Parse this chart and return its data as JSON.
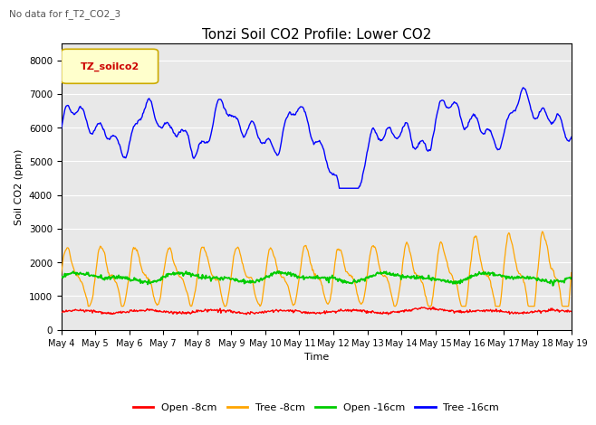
{
  "title": "Tonzi Soil CO2 Profile: Lower CO2",
  "subtitle": "No data for f_T2_CO2_3",
  "ylabel": "Soil CO2 (ppm)",
  "xlabel": "Time",
  "legend_label": "TZ_soilco2",
  "legend_entries": [
    "Open -8cm",
    "Tree -8cm",
    "Open -16cm",
    "Tree -16cm"
  ],
  "legend_colors": [
    "#ff0000",
    "#ffa500",
    "#00cc00",
    "#0000ff"
  ],
  "ylim": [
    0,
    8500
  ],
  "yticks": [
    0,
    1000,
    2000,
    3000,
    4000,
    5000,
    6000,
    7000,
    8000
  ],
  "x_tick_labels": [
    "May 4",
    "May 5",
    "May 6",
    "May 7",
    "May 8",
    "May 9",
    "May 10",
    "May 11",
    "May 12",
    "May 13",
    "May 14",
    "May 15",
    "May 16",
    "May 17",
    "May 18",
    "May 19"
  ],
  "bg_color": "#e8e8e8",
  "title_fontsize": 11,
  "axis_label_fontsize": 8,
  "tick_fontsize": 7.5
}
